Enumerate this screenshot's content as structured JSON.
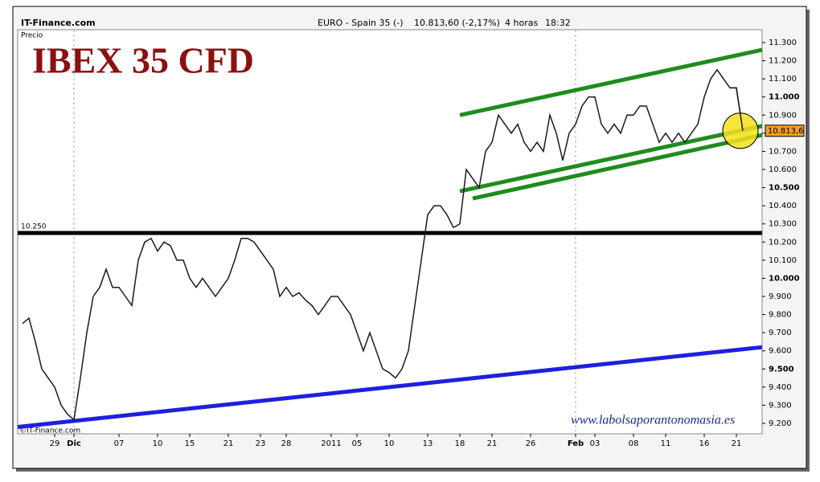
{
  "source": "IT-Finance.com",
  "header": {
    "instrument": "EURO - Spain 35 (-)",
    "quote": "10.813,60 (-2,17%)",
    "period": "4 horas",
    "time": "18:32"
  },
  "copyright": "©IT-Finance.com",
  "website": "www.labolsaporantonomasia.es",
  "chart_data": {
    "type": "line",
    "title": "IBEX 35 CFD",
    "y_label": "Precio",
    "categories": [
      null,
      null,
      null,
      null,
      null,
      "29",
      null,
      null,
      "Dic",
      null,
      null,
      null,
      null,
      null,
      null,
      "07",
      null,
      null,
      null,
      null,
      null,
      "10",
      null,
      null,
      null,
      null,
      "15",
      null,
      null,
      null,
      null,
      null,
      "21",
      null,
      null,
      null,
      null,
      "23",
      null,
      null,
      null,
      "28",
      null,
      null,
      null,
      null,
      null,
      null,
      "2011",
      null,
      null,
      null,
      "05",
      null,
      null,
      null,
      null,
      "10",
      null,
      null,
      null,
      null,
      null,
      "13",
      null,
      null,
      null,
      null,
      "18",
      null,
      null,
      null,
      null,
      "21",
      null,
      null,
      null,
      null,
      null,
      "26",
      null,
      null,
      null,
      null,
      null,
      null,
      "Feb",
      null,
      null,
      "03",
      null,
      null,
      null,
      null,
      null,
      "08",
      null,
      null,
      null,
      null,
      "11",
      null,
      null,
      null,
      null,
      null,
      "16",
      null,
      null,
      null,
      null,
      "21",
      null
    ],
    "series": [
      {
        "name": "EURO - Spain 35",
        "color": "#1a1a1a",
        "values": [
          9750,
          9780,
          9650,
          9500,
          9450,
          9400,
          9300,
          9250,
          9220,
          9450,
          9700,
          9900,
          9950,
          10050,
          9950,
          9950,
          9900,
          9850,
          10100,
          10200,
          10220,
          10150,
          10200,
          10180,
          10100,
          10100,
          10000,
          9950,
          10000,
          9950,
          9900,
          9950,
          10000,
          10100,
          10220,
          10220,
          10200,
          10150,
          10100,
          10050,
          9900,
          9950,
          9900,
          9920,
          9880,
          9850,
          9800,
          9850,
          9900,
          9900,
          9850,
          9800,
          9700,
          9600,
          9700,
          9600,
          9500,
          9480,
          9450,
          9500,
          9600,
          9850,
          10100,
          10350,
          10400,
          10400,
          10350,
          10280,
          10300,
          10600,
          10550,
          10500,
          10700,
          10750,
          10900,
          10850,
          10800,
          10850,
          10750,
          10700,
          10750,
          10700,
          10900,
          10800,
          10650,
          10800,
          10850,
          10950,
          11000,
          11000,
          10850,
          10800,
          10850,
          10800,
          10900,
          10900,
          10950,
          10950,
          10850,
          10750,
          10800,
          10750,
          10800,
          10750,
          10800,
          10850,
          11000,
          11100,
          11150,
          11100,
          11050,
          11050,
          10813.6
        ]
      }
    ],
    "last_price": {
      "value": 10813.6,
      "label": "10.813,6"
    },
    "ylim": [
      9200,
      11300
    ],
    "yticks": [
      {
        "value": 9200,
        "label": "9.200"
      },
      {
        "value": 9300,
        "label": "9.300"
      },
      {
        "value": 9400,
        "label": "9.400"
      },
      {
        "value": 9500,
        "label": "9.500"
      },
      {
        "value": 9600,
        "label": "9.600"
      },
      {
        "value": 9700,
        "label": "9.700"
      },
      {
        "value": 9800,
        "label": "9.800"
      },
      {
        "value": 9900,
        "label": "9.900"
      },
      {
        "value": 10000,
        "label": "10.000"
      },
      {
        "value": 10100,
        "label": "10.100"
      },
      {
        "value": 10200,
        "label": "10.200"
      },
      {
        "value": 10300,
        "label": "10.300"
      },
      {
        "value": 10400,
        "label": "10.400"
      },
      {
        "value": 10500,
        "label": "10.500"
      },
      {
        "value": 10600,
        "label": "10.600"
      },
      {
        "value": 10700,
        "label": "10.700"
      },
      {
        "value": 10800,
        "label": "10.800"
      },
      {
        "value": 10900,
        "label": "10.900"
      },
      {
        "value": 11000,
        "label": "11.000"
      },
      {
        "value": 11100,
        "label": "11.100"
      },
      {
        "value": 11200,
        "label": "11.200"
      },
      {
        "value": 11300,
        "label": "11.300"
      }
    ],
    "hline": {
      "value": 10250,
      "label": "10.250",
      "color": "#000000"
    },
    "trendlines": [
      {
        "color": "#1f1fe0",
        "points": [
          [
            0,
            9180
          ],
          [
            115,
            9620
          ]
        ]
      },
      {
        "color": "#1e8c1e",
        "points": [
          [
            68,
            10900
          ],
          [
            115,
            11260
          ]
        ]
      },
      {
        "color": "#1e8c1e",
        "points": [
          [
            68,
            10480
          ],
          [
            115,
            10840
          ]
        ]
      },
      {
        "color": "#1e8c1e",
        "points": [
          [
            70,
            10440
          ],
          [
            115,
            10790
          ]
        ]
      }
    ]
  }
}
